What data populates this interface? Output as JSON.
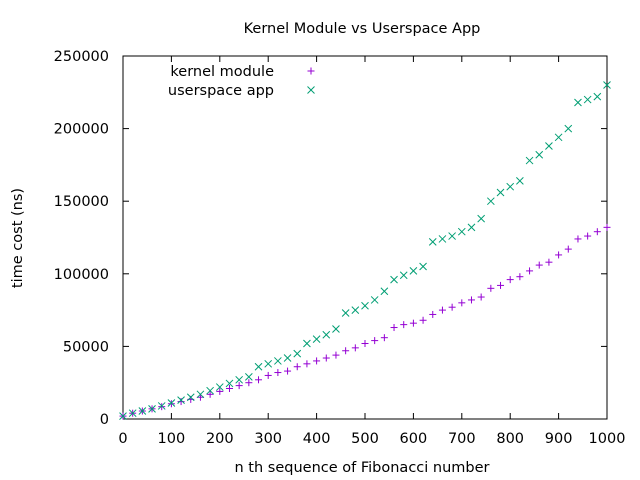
{
  "chart_data": {
    "type": "scatter",
    "title": "Kernel Module vs Userspace App",
    "xlabel": "n th sequence of Fibonacci number",
    "ylabel": "time cost (ns)",
    "xlim": [
      0,
      1000
    ],
    "ylim": [
      0,
      250000
    ],
    "xticks": [
      0,
      100,
      200,
      300,
      400,
      500,
      600,
      700,
      800,
      900,
      1000
    ],
    "yticks": [
      0,
      50000,
      100000,
      150000,
      200000,
      250000
    ],
    "xtick_labels": [
      "0",
      "100",
      "200",
      "300",
      "400",
      "500",
      "600",
      "700",
      "800",
      "900",
      "1000"
    ],
    "ytick_labels": [
      "0",
      "50000",
      "100000",
      "150000",
      "200000",
      "250000"
    ],
    "grid": false,
    "legend_position": "top-left",
    "series": [
      {
        "name": "kernel module",
        "marker": "plus",
        "color": "#9400d3",
        "x": [
          0,
          20,
          40,
          60,
          80,
          100,
          120,
          140,
          160,
          180,
          200,
          220,
          240,
          260,
          280,
          300,
          320,
          340,
          360,
          380,
          400,
          420,
          440,
          460,
          480,
          500,
          520,
          540,
          560,
          580,
          600,
          620,
          640,
          660,
          680,
          700,
          720,
          740,
          760,
          780,
          800,
          820,
          840,
          860,
          880,
          900,
          920,
          940,
          960,
          980,
          1000
        ],
        "y": [
          2000,
          4000,
          5500,
          7000,
          8500,
          10500,
          12000,
          13500,
          15000,
          17000,
          19000,
          21000,
          23000,
          25000,
          27000,
          30000,
          32000,
          33000,
          36000,
          38000,
          40000,
          42000,
          44000,
          47000,
          49000,
          52000,
          54000,
          56000,
          63000,
          65000,
          66000,
          68000,
          72000,
          75000,
          77000,
          80000,
          82000,
          84000,
          90000,
          92000,
          96000,
          98000,
          102000,
          106000,
          108000,
          113000,
          117000,
          124000,
          126000,
          129000,
          132000
        ]
      },
      {
        "name": "userspace app",
        "marker": "cross",
        "color": "#009e73",
        "x": [
          0,
          20,
          40,
          60,
          80,
          100,
          120,
          140,
          160,
          180,
          200,
          220,
          240,
          260,
          280,
          300,
          320,
          340,
          360,
          380,
          400,
          420,
          440,
          460,
          480,
          500,
          520,
          540,
          560,
          580,
          600,
          620,
          640,
          660,
          680,
          700,
          720,
          740,
          760,
          780,
          800,
          820,
          840,
          860,
          880,
          900,
          920,
          940,
          960,
          980,
          1000
        ],
        "y": [
          2000,
          4000,
          5500,
          7000,
          9000,
          11000,
          13000,
          15000,
          17000,
          19500,
          22000,
          24500,
          27000,
          29000,
          36000,
          38000,
          40000,
          42000,
          45000,
          52000,
          55000,
          58000,
          62000,
          73000,
          75000,
          78000,
          82000,
          88000,
          96000,
          99000,
          102000,
          105000,
          122000,
          124000,
          126000,
          129000,
          132000,
          138000,
          150000,
          156000,
          160000,
          164000,
          178000,
          182000,
          188000,
          194000,
          200000,
          218000,
          220000,
          222000,
          230000
        ]
      }
    ]
  }
}
